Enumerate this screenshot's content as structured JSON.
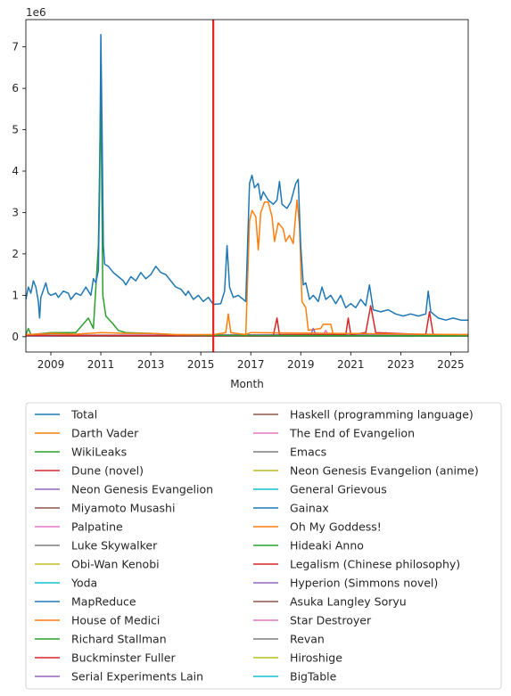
{
  "chart_data": {
    "type": "line",
    "xlabel": "Month",
    "ylabel": "",
    "y_multiplier": "1e6",
    "xlim": [
      2008.0,
      2025.7
    ],
    "ylim": [
      -0.37,
      7.66
    ],
    "x_ticks": [
      2009,
      2011,
      2013,
      2015,
      2017,
      2019,
      2021,
      2023,
      2025
    ],
    "x_tick_labels": [
      "2009",
      "2011",
      "2013",
      "2015",
      "2017",
      "2019",
      "2021",
      "2023",
      "2025"
    ],
    "y_ticks": [
      0,
      1,
      2,
      3,
      4,
      5,
      6,
      7
    ],
    "y_tick_labels": [
      "0",
      "1",
      "2",
      "3",
      "4",
      "5",
      "6",
      "7"
    ],
    "grid": false,
    "legend_placement": "below",
    "legend_columns": 2,
    "vline": {
      "x": 2015.5,
      "color": "#e8221a"
    },
    "series": [
      {
        "name": "Total",
        "color": "#1f77b4",
        "points": [
          [
            2008.0,
            0.9
          ],
          [
            2008.1,
            1.2
          ],
          [
            2008.2,
            1.05
          ],
          [
            2008.3,
            1.35
          ],
          [
            2008.4,
            1.2
          ],
          [
            2008.5,
            0.85
          ],
          [
            2008.55,
            0.45
          ],
          [
            2008.6,
            0.95
          ],
          [
            2008.8,
            1.3
          ],
          [
            2008.9,
            1.05
          ],
          [
            2009.0,
            1.0
          ],
          [
            2009.2,
            1.05
          ],
          [
            2009.3,
            0.95
          ],
          [
            2009.5,
            1.1
          ],
          [
            2009.7,
            1.05
          ],
          [
            2009.8,
            0.9
          ],
          [
            2010.0,
            1.05
          ],
          [
            2010.2,
            1.0
          ],
          [
            2010.4,
            1.2
          ],
          [
            2010.5,
            1.1
          ],
          [
            2010.6,
            1.0
          ],
          [
            2010.7,
            1.4
          ],
          [
            2010.8,
            1.3
          ],
          [
            2010.9,
            1.6
          ],
          [
            2010.95,
            3.6
          ],
          [
            2011.0,
            7.3
          ],
          [
            2011.05,
            4.9
          ],
          [
            2011.1,
            2.2
          ],
          [
            2011.15,
            1.75
          ],
          [
            2011.3,
            1.7
          ],
          [
            2011.5,
            1.55
          ],
          [
            2011.7,
            1.45
          ],
          [
            2011.9,
            1.35
          ],
          [
            2012.0,
            1.25
          ],
          [
            2012.2,
            1.45
          ],
          [
            2012.4,
            1.35
          ],
          [
            2012.6,
            1.55
          ],
          [
            2012.8,
            1.4
          ],
          [
            2013.0,
            1.5
          ],
          [
            2013.2,
            1.7
          ],
          [
            2013.4,
            1.55
          ],
          [
            2013.6,
            1.5
          ],
          [
            2013.8,
            1.35
          ],
          [
            2014.0,
            1.2
          ],
          [
            2014.2,
            1.15
          ],
          [
            2014.4,
            1.0
          ],
          [
            2014.5,
            1.1
          ],
          [
            2014.7,
            0.9
          ],
          [
            2014.9,
            1.0
          ],
          [
            2015.1,
            0.85
          ],
          [
            2015.3,
            0.95
          ],
          [
            2015.5,
            0.78
          ],
          [
            2015.8,
            0.8
          ],
          [
            2015.95,
            1.1
          ],
          [
            2016.05,
            2.2
          ],
          [
            2016.15,
            1.2
          ],
          [
            2016.3,
            0.95
          ],
          [
            2016.5,
            1.0
          ],
          [
            2016.7,
            0.9
          ],
          [
            2016.8,
            0.85
          ],
          [
            2016.95,
            3.7
          ],
          [
            2017.05,
            3.9
          ],
          [
            2017.15,
            3.6
          ],
          [
            2017.3,
            3.7
          ],
          [
            2017.4,
            3.3
          ],
          [
            2017.5,
            3.5
          ],
          [
            2017.7,
            3.3
          ],
          [
            2017.9,
            3.2
          ],
          [
            2018.05,
            3.3
          ],
          [
            2018.15,
            3.75
          ],
          [
            2018.25,
            3.2
          ],
          [
            2018.45,
            3.1
          ],
          [
            2018.6,
            3.25
          ],
          [
            2018.8,
            3.7
          ],
          [
            2018.9,
            3.8
          ],
          [
            2019.0,
            2.2
          ],
          [
            2019.1,
            1.25
          ],
          [
            2019.2,
            1.3
          ],
          [
            2019.35,
            0.9
          ],
          [
            2019.5,
            1.0
          ],
          [
            2019.7,
            0.85
          ],
          [
            2019.85,
            1.2
          ],
          [
            2020.0,
            0.9
          ],
          [
            2020.2,
            1.0
          ],
          [
            2020.4,
            0.8
          ],
          [
            2020.6,
            1.0
          ],
          [
            2020.8,
            0.7
          ],
          [
            2021.0,
            0.8
          ],
          [
            2021.2,
            0.7
          ],
          [
            2021.4,
            0.9
          ],
          [
            2021.6,
            0.75
          ],
          [
            2021.75,
            1.25
          ],
          [
            2021.9,
            0.65
          ],
          [
            2022.2,
            0.6
          ],
          [
            2022.5,
            0.65
          ],
          [
            2022.8,
            0.55
          ],
          [
            2023.1,
            0.5
          ],
          [
            2023.4,
            0.55
          ],
          [
            2023.7,
            0.5
          ],
          [
            2024.0,
            0.55
          ],
          [
            2024.1,
            1.1
          ],
          [
            2024.2,
            0.6
          ],
          [
            2024.5,
            0.45
          ],
          [
            2024.8,
            0.4
          ],
          [
            2025.1,
            0.45
          ],
          [
            2025.4,
            0.4
          ],
          [
            2025.7,
            0.4
          ]
        ]
      },
      {
        "name": "Darth Vader",
        "color": "#ff7f0e",
        "points": [
          [
            2008.0,
            0.05
          ],
          [
            2009.0,
            0.08
          ],
          [
            2010.0,
            0.06
          ],
          [
            2011.0,
            0.1
          ],
          [
            2012.0,
            0.08
          ],
          [
            2013.0,
            0.08
          ],
          [
            2014.0,
            0.05
          ],
          [
            2015.5,
            0.05
          ],
          [
            2016.0,
            0.1
          ],
          [
            2016.1,
            0.55
          ],
          [
            2016.2,
            0.1
          ],
          [
            2016.8,
            0.05
          ],
          [
            2017.0,
            0.1
          ],
          [
            2025.7,
            0.05
          ]
        ]
      },
      {
        "name": "WikiLeaks",
        "color": "#2ca02c",
        "points": [
          [
            2008.0,
            0.05
          ],
          [
            2008.1,
            0.2
          ],
          [
            2008.2,
            0.05
          ],
          [
            2009.0,
            0.1
          ],
          [
            2010.0,
            0.1
          ],
          [
            2010.5,
            0.45
          ],
          [
            2010.7,
            0.2
          ],
          [
            2010.9,
            2.2
          ],
          [
            2011.0,
            5.95
          ],
          [
            2011.08,
            1.0
          ],
          [
            2011.2,
            0.5
          ],
          [
            2011.5,
            0.3
          ],
          [
            2011.7,
            0.15
          ],
          [
            2012.0,
            0.1
          ],
          [
            2013.0,
            0.08
          ],
          [
            2014.0,
            0.05
          ],
          [
            2015.0,
            0.04
          ],
          [
            2016.0,
            0.03
          ],
          [
            2025.7,
            0.02
          ]
        ]
      },
      {
        "name": "Dune (novel)",
        "color": "#d62728",
        "points": [
          [
            2008.0,
            0.03
          ],
          [
            2017.9,
            0.02
          ],
          [
            2018.05,
            0.45
          ],
          [
            2018.15,
            0.05
          ],
          [
            2020.8,
            0.05
          ],
          [
            2020.9,
            0.45
          ],
          [
            2021.0,
            0.05
          ],
          [
            2021.6,
            0.1
          ],
          [
            2021.8,
            0.75
          ],
          [
            2022.0,
            0.1
          ],
          [
            2024.0,
            0.05
          ],
          [
            2024.15,
            0.6
          ],
          [
            2024.3,
            0.05
          ],
          [
            2025.7,
            0.05
          ]
        ]
      },
      {
        "name": "Neon Genesis Evangelion",
        "color": "#9467bd",
        "points": [
          [
            2008.0,
            0.02
          ],
          [
            2019.4,
            0.05
          ],
          [
            2019.5,
            0.2
          ],
          [
            2019.6,
            0.05
          ],
          [
            2025.7,
            0.02
          ]
        ]
      },
      {
        "name": "Miyamoto Musashi",
        "color": "#8c564b",
        "points": [
          [
            2008.0,
            0.02
          ],
          [
            2025.7,
            0.02
          ]
        ]
      },
      {
        "name": "Palpatine",
        "color": "#e377c2",
        "points": [
          [
            2008.0,
            0.03
          ],
          [
            2019.9,
            0.05
          ],
          [
            2020.0,
            0.15
          ],
          [
            2020.1,
            0.05
          ],
          [
            2025.7,
            0.03
          ]
        ]
      },
      {
        "name": "Luke Skywalker",
        "color": "#7f7f7f",
        "points": [
          [
            2008.0,
            0.03
          ],
          [
            2025.7,
            0.03
          ]
        ]
      },
      {
        "name": "Obi-Wan Kenobi",
        "color": "#bcbd22",
        "points": [
          [
            2008.0,
            0.02
          ],
          [
            2022.3,
            0.02
          ],
          [
            2022.4,
            0.1
          ],
          [
            2022.5,
            0.02
          ],
          [
            2025.7,
            0.02
          ]
        ]
      },
      {
        "name": "Yoda",
        "color": "#17becf",
        "points": [
          [
            2008.0,
            0.02
          ],
          [
            2025.7,
            0.02
          ]
        ]
      },
      {
        "name": "MapReduce",
        "color": "#1f77b4",
        "points": [
          [
            2008.0,
            0.02
          ],
          [
            2025.7,
            0.01
          ]
        ]
      },
      {
        "name": "House of Medici",
        "color": "#ff7f0e",
        "points": [
          [
            2008.0,
            0.02
          ],
          [
            2016.8,
            0.05
          ],
          [
            2016.95,
            2.8
          ],
          [
            2017.05,
            3.05
          ],
          [
            2017.2,
            2.9
          ],
          [
            2017.3,
            2.1
          ],
          [
            2017.4,
            3.0
          ],
          [
            2017.55,
            3.25
          ],
          [
            2017.7,
            3.25
          ],
          [
            2017.85,
            2.9
          ],
          [
            2017.95,
            2.3
          ],
          [
            2018.1,
            2.75
          ],
          [
            2018.3,
            2.6
          ],
          [
            2018.4,
            2.3
          ],
          [
            2018.55,
            2.45
          ],
          [
            2018.7,
            2.25
          ],
          [
            2018.85,
            3.3
          ],
          [
            2018.95,
            2.7
          ],
          [
            2019.05,
            0.85
          ],
          [
            2019.2,
            0.7
          ],
          [
            2019.3,
            0.15
          ],
          [
            2019.8,
            0.2
          ],
          [
            2019.9,
            0.3
          ],
          [
            2020.2,
            0.3
          ],
          [
            2020.3,
            0.05
          ],
          [
            2025.7,
            0.02
          ]
        ]
      },
      {
        "name": "Richard Stallman",
        "color": "#2ca02c",
        "points": [
          [
            2008.0,
            0.05
          ],
          [
            2009.0,
            0.04
          ],
          [
            2025.7,
            0.02
          ]
        ]
      },
      {
        "name": "Buckminster Fuller",
        "color": "#d62728",
        "points": [
          [
            2008.0,
            0.03
          ],
          [
            2025.7,
            0.02
          ]
        ]
      },
      {
        "name": "Serial Experiments Lain",
        "color": "#9467bd",
        "points": [
          [
            2008.0,
            0.01
          ],
          [
            2025.7,
            0.02
          ]
        ]
      },
      {
        "name": "Haskell (programming language)",
        "color": "#8c564b",
        "points": [
          [
            2008.0,
            0.02
          ],
          [
            2025.7,
            0.02
          ]
        ]
      },
      {
        "name": "The End of Evangelion",
        "color": "#e377c2",
        "points": [
          [
            2008.0,
            0.01
          ],
          [
            2025.7,
            0.01
          ]
        ]
      },
      {
        "name": "Emacs",
        "color": "#7f7f7f",
        "points": [
          [
            2008.0,
            0.02
          ],
          [
            2025.7,
            0.01
          ]
        ]
      },
      {
        "name": "Neon Genesis Evangelion (anime)",
        "color": "#bcbd22",
        "points": [
          [
            2008.0,
            0.01
          ],
          [
            2013.0,
            0.02
          ],
          [
            2025.7,
            0.01
          ]
        ]
      },
      {
        "name": "General Grievous",
        "color": "#17becf",
        "points": [
          [
            2008.0,
            0.01
          ],
          [
            2025.7,
            0.01
          ]
        ]
      },
      {
        "name": "Gainax",
        "color": "#1f77b4",
        "points": [
          [
            2008.0,
            0.01
          ],
          [
            2025.7,
            0.01
          ]
        ]
      },
      {
        "name": "Oh My Goddess!",
        "color": "#ff7f0e",
        "points": [
          [
            2008.0,
            0.02
          ],
          [
            2025.7,
            0.01
          ]
        ]
      },
      {
        "name": "Hideaki Anno",
        "color": "#2ca02c",
        "points": [
          [
            2008.0,
            0.01
          ],
          [
            2025.7,
            0.01
          ]
        ]
      },
      {
        "name": "Legalism (Chinese philosophy)",
        "color": "#d62728",
        "points": [
          [
            2008.0,
            0.01
          ],
          [
            2025.7,
            0.01
          ]
        ]
      },
      {
        "name": "Hyperion (Simmons novel)",
        "color": "#9467bd",
        "points": [
          [
            2008.0,
            0.01
          ],
          [
            2025.7,
            0.01
          ]
        ]
      },
      {
        "name": "Asuka Langley Soryu",
        "color": "#8c564b",
        "points": [
          [
            2008.0,
            0.01
          ],
          [
            2025.7,
            0.01
          ]
        ]
      },
      {
        "name": "Star Destroyer",
        "color": "#e377c2",
        "points": [
          [
            2008.0,
            0.01
          ],
          [
            2025.7,
            0.01
          ]
        ]
      },
      {
        "name": "Revan",
        "color": "#7f7f7f",
        "points": [
          [
            2008.0,
            0.01
          ],
          [
            2025.7,
            0.01
          ]
        ]
      },
      {
        "name": "Hiroshige",
        "color": "#bcbd22",
        "points": [
          [
            2008.0,
            0.01
          ],
          [
            2025.7,
            0.01
          ]
        ]
      },
      {
        "name": "BigTable",
        "color": "#17becf",
        "points": [
          [
            2008.0,
            0.01
          ],
          [
            2025.7,
            0.01
          ]
        ]
      }
    ]
  }
}
